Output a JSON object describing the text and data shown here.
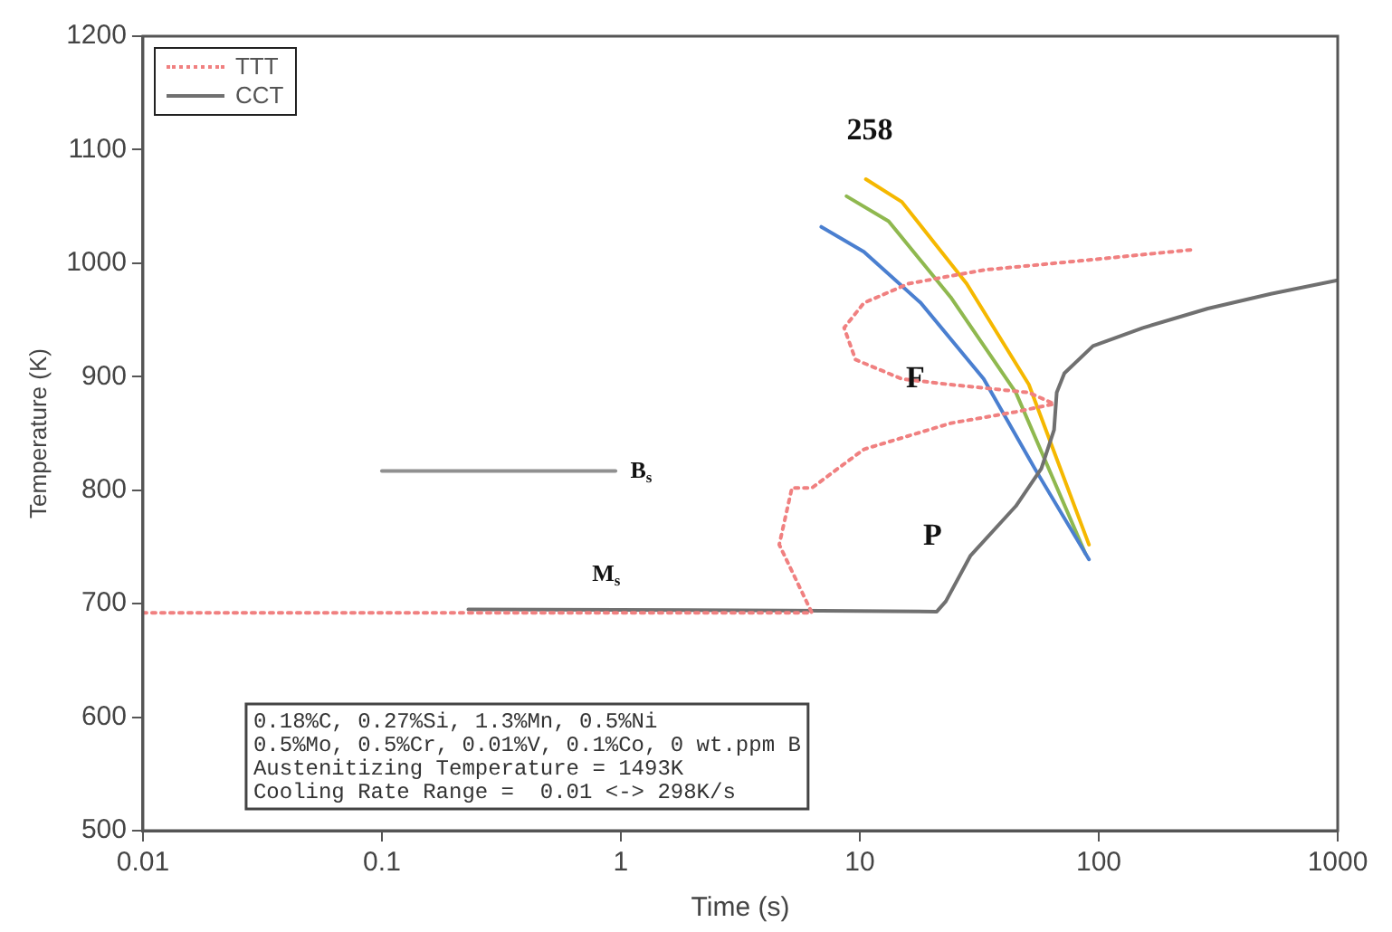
{
  "chart_data": {
    "type": "line",
    "xlabel": "Time (s)",
    "ylabel": "Temperature (K)",
    "log": "x",
    "xlim": [
      0.01,
      1000
    ],
    "xticks": [
      0.01,
      0.1,
      1,
      10,
      100,
      1000
    ],
    "ylim": [
      500,
      1200
    ],
    "yticks": [
      500,
      600,
      700,
      800,
      900,
      1000,
      1100,
      1200
    ],
    "grid": false,
    "legend": "top left",
    "marker": "none",
    "series": [
      {
        "name": "TTT",
        "color": "#f08080",
        "line_style": "dotted",
        "x": [
          0.01,
          1,
          4,
          6.3,
          4.6,
          5.2,
          6.3,
          10.4,
          24,
          45,
          65,
          51,
          24,
          15,
          9.6,
          8.6,
          10.4,
          16,
          33,
          83,
          250
        ],
        "values": [
          692,
          692,
          692,
          692,
          752,
          802,
          802,
          836,
          859,
          869,
          876,
          886,
          893,
          898,
          915,
          943,
          965,
          982,
          994,
          1002,
          1012
        ]
      },
      {
        "name": "CCT",
        "color": "#707070",
        "line_style": "solid",
        "x": [
          0.23,
          5,
          21,
          22.9,
          29,
          45,
          57.5,
          65,
          66.7,
          71.8,
          94.6,
          153,
          286,
          525,
          1000
        ],
        "values": [
          695,
          694,
          693,
          702,
          742,
          786,
          819,
          853,
          886,
          903,
          927,
          943,
          960,
          973,
          985
        ]
      },
      {
        "color": "#909090",
        "line_style": "solid",
        "x": [
          0.1,
          0.95
        ],
        "values": [
          817,
          817
        ]
      },
      {
        "color": "#4a7fd0",
        "line_style": "solid",
        "x": [
          6.9,
          10.4,
          18,
          33,
          54,
          91
        ],
        "values": [
          1032,
          1010,
          965,
          898,
          819,
          739
        ]
      },
      {
        "color": "#8fb84f",
        "line_style": "solid",
        "x": [
          8.8,
          13.2,
          24,
          45,
          88
        ],
        "values": [
          1059,
          1037,
          970,
          886,
          744
        ]
      },
      {
        "color": "#f5b800",
        "line_style": "solid",
        "x": [
          10.6,
          15,
          28,
          51,
          91
        ],
        "values": [
          1074,
          1054,
          982,
          893,
          752
        ]
      }
    ],
    "annotations": [
      {
        "text": "F",
        "x": 15.6,
        "y": 898
      },
      "258",
      "P",
      "B$_{s}$",
      "M$_{s}$",
      "0.18%C, 0.27%Si, 1.3%Mn, 0.5%Ni",
      "0.5%Mo, 0.5%Cr, 0.01%V, 0.1%Co, 0 wt.ppm B",
      "Austenitizing Temperature = 1493K",
      "Cooling Rate Range =  0.01 <-> 298K/s"
    ]
  }
}
